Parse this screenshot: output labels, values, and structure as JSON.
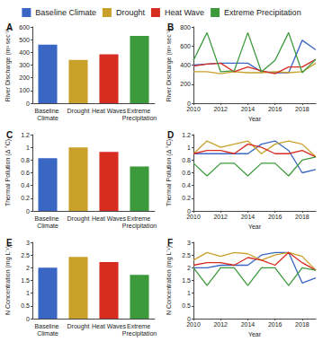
{
  "chart_data": [
    {
      "type": "bar",
      "label": "A",
      "ylabel": "River Discharge (m³ sec⁻¹)",
      "categories": [
        "Baseline Climate",
        "Drought",
        "Heat Waves",
        "Extreme Precipitation"
      ],
      "values": [
        460,
        340,
        385,
        530
      ],
      "colors": [
        "#3a66c4",
        "#c8a02a",
        "#d62d20",
        "#3c9a3c"
      ],
      "ylim": [
        0,
        600
      ],
      "yticks": [
        0,
        100,
        200,
        300,
        400,
        500,
        600
      ]
    },
    {
      "type": "line",
      "label": "B",
      "xlabel": "Year",
      "ylabel": "River Discharge (m³ sec⁻¹)",
      "x": [
        2010,
        2011,
        2012,
        2013,
        2014,
        2015,
        2016,
        2017,
        2018,
        2019
      ],
      "xlim": [
        2010,
        2019
      ],
      "xticks": [
        2010,
        2012,
        2014,
        2016,
        2018
      ],
      "ylim": [
        0,
        800
      ],
      "yticks": [
        0,
        200,
        400,
        600,
        800
      ],
      "legend": "top",
      "series": [
        {
          "name": "Baseline Climate",
          "color": "#3a66c4",
          "values": [
            400,
            410,
            420,
            420,
            420,
            330,
            320,
            320,
            660,
            560
          ]
        },
        {
          "name": "Drought",
          "color": "#c8a02a",
          "values": [
            330,
            330,
            310,
            330,
            320,
            320,
            330,
            320,
            330,
            420
          ]
        },
        {
          "name": "Heat Wave",
          "color": "#d62d20",
          "values": [
            390,
            410,
            420,
            330,
            380,
            340,
            310,
            380,
            380,
            460
          ]
        },
        {
          "name": "Extreme Precipitation",
          "color": "#3c9a3c",
          "values": [
            450,
            740,
            330,
            340,
            740,
            330,
            450,
            740,
            320,
            460
          ]
        }
      ]
    },
    {
      "type": "bar",
      "label": "C",
      "ylabel": "Thermal Pollution (Δ °C)",
      "categories": [
        "Baseline Climate",
        "Drought",
        "Heat Waves",
        "Extreme Precipitation"
      ],
      "values": [
        0.83,
        1.0,
        0.93,
        0.7
      ],
      "colors": [
        "#3a66c4",
        "#c8a02a",
        "#d62d20",
        "#3c9a3c"
      ],
      "ylim": [
        0,
        1.2
      ],
      "yticks": [
        0,
        0.2,
        0.4,
        0.6,
        0.8,
        1,
        1.2
      ]
    },
    {
      "type": "line",
      "label": "D",
      "xlabel": "Year",
      "ylabel": "Thermal Pollution (Δ °C)",
      "x": [
        2010,
        2011,
        2012,
        2013,
        2014,
        2015,
        2016,
        2017,
        2018,
        2019
      ],
      "xlim": [
        2010,
        2019
      ],
      "xticks": [
        2010,
        2012,
        2014,
        2016,
        2018
      ],
      "ylim": [
        0,
        1.2
      ],
      "yticks": [
        0,
        0.2,
        0.4,
        0.6,
        0.8,
        1,
        1.2
      ],
      "series": [
        {
          "name": "Baseline Climate",
          "color": "#3a66c4",
          "values": [
            0.9,
            0.9,
            0.9,
            0.9,
            0.9,
            1.05,
            1.1,
            0.95,
            0.6,
            0.65
          ]
        },
        {
          "name": "Drought",
          "color": "#c8a02a",
          "values": [
            0.9,
            1.1,
            1.0,
            1.05,
            1.1,
            0.9,
            1.05,
            1.1,
            1.05,
            0.85
          ]
        },
        {
          "name": "Heat Wave",
          "color": "#d62d20",
          "values": [
            0.9,
            0.95,
            0.95,
            0.9,
            1.05,
            1.0,
            0.9,
            0.9,
            0.95,
            0.85
          ]
        },
        {
          "name": "Extreme Precipitation",
          "color": "#3c9a3c",
          "values": [
            0.75,
            0.55,
            0.75,
            0.75,
            0.55,
            0.75,
            0.75,
            0.55,
            0.8,
            0.85
          ]
        }
      ]
    },
    {
      "type": "bar",
      "label": "E",
      "ylabel": "N Concentration (mg L⁻¹)",
      "categories": [
        "Baseline Climate",
        "Drought",
        "Heat Waves",
        "Extreme Precipitation"
      ],
      "values": [
        2.0,
        2.43,
        2.22,
        1.72
      ],
      "colors": [
        "#3a66c4",
        "#c8a02a",
        "#d62d20",
        "#3c9a3c"
      ],
      "ylim": [
        0,
        3
      ],
      "yticks": [
        0,
        0.5,
        1,
        1.5,
        2,
        2.5,
        3
      ]
    },
    {
      "type": "line",
      "label": "F",
      "xlabel": "Year",
      "ylabel": "N Concentration (mg L⁻¹)",
      "x": [
        2010,
        2011,
        2012,
        2013,
        2014,
        2015,
        2016,
        2017,
        2018,
        2019
      ],
      "xlim": [
        2010,
        2019
      ],
      "xticks": [
        2010,
        2012,
        2014,
        2016,
        2018
      ],
      "ylim": [
        0,
        3
      ],
      "yticks": [
        0,
        0.5,
        1,
        1.5,
        2,
        2.5,
        3
      ],
      "series": [
        {
          "name": "Baseline Climate",
          "color": "#3a66c4",
          "values": [
            2.0,
            2.0,
            2.1,
            2.1,
            2.1,
            2.5,
            2.6,
            2.6,
            1.4,
            1.6
          ]
        },
        {
          "name": "Drought",
          "color": "#c8a02a",
          "values": [
            2.3,
            2.6,
            2.45,
            2.6,
            2.55,
            2.3,
            2.5,
            2.6,
            2.45,
            1.9
          ]
        },
        {
          "name": "Heat Wave",
          "color": "#d62d20",
          "values": [
            2.1,
            2.2,
            2.2,
            2.1,
            2.4,
            2.3,
            2.1,
            2.6,
            2.2,
            1.9
          ]
        },
        {
          "name": "Extreme Precipitation",
          "color": "#3c9a3c",
          "values": [
            2.0,
            1.3,
            2.0,
            2.0,
            1.3,
            2.0,
            2.0,
            1.3,
            2.0,
            1.9
          ]
        }
      ]
    }
  ]
}
